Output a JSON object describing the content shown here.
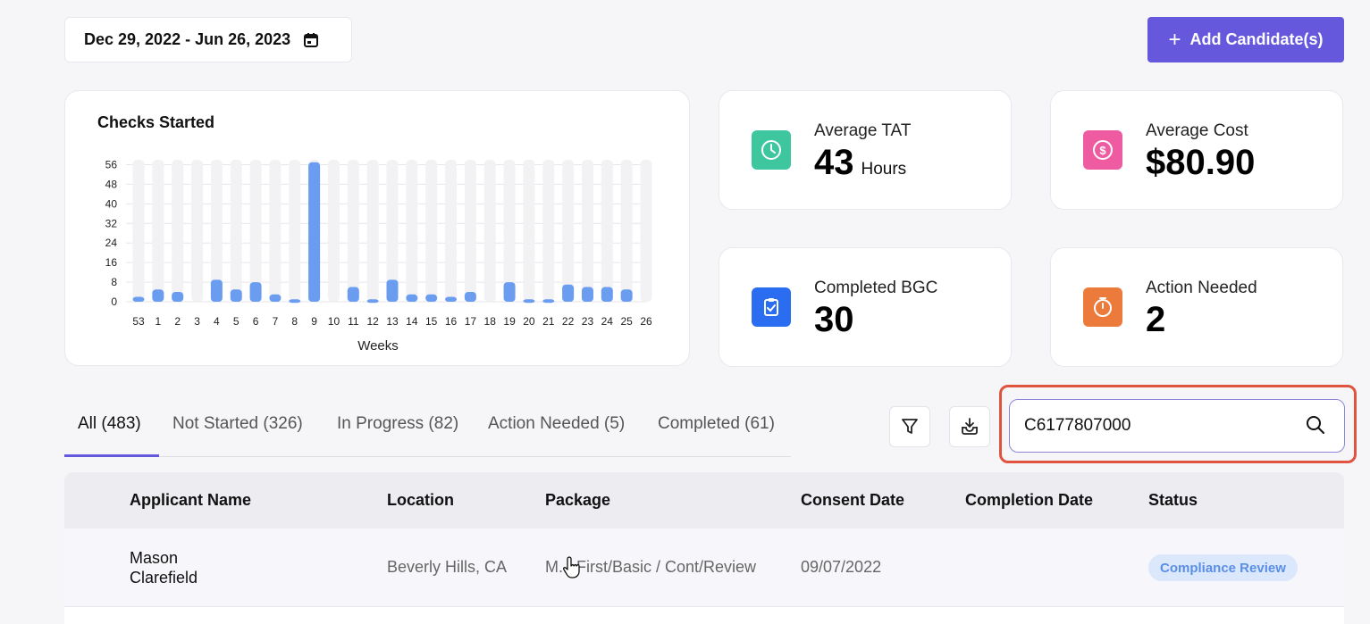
{
  "date_range": {
    "label": "Dec 29, 2022 - Jun 26, 2023",
    "icon": "calendar-icon"
  },
  "add_button": {
    "label": "Add Candidate(s)",
    "icon": "plus-icon"
  },
  "chart_data": {
    "type": "bar",
    "title": "Checks Started",
    "xlabel": "Weeks",
    "ylabel": "",
    "ylim": [
      0,
      58
    ],
    "yticks": [
      0,
      8,
      16,
      24,
      32,
      40,
      48,
      56
    ],
    "categories": [
      "53",
      "1",
      "2",
      "3",
      "4",
      "5",
      "6",
      "7",
      "8",
      "9",
      "10",
      "11",
      "12",
      "13",
      "14",
      "15",
      "16",
      "17",
      "18",
      "19",
      "20",
      "21",
      "22",
      "23",
      "24",
      "25",
      "26"
    ],
    "values": [
      2,
      5,
      4,
      0,
      9,
      5,
      8,
      3,
      1,
      57,
      0,
      6,
      1,
      9,
      3,
      3,
      2,
      4,
      0,
      8,
      1,
      1,
      7,
      6,
      6,
      5,
      0
    ],
    "grid": true,
    "colors": {
      "bar": "#6a9cf0",
      "track": "#f2f2f4"
    }
  },
  "stats": {
    "avg_tat": {
      "label": "Average TAT",
      "value": "43",
      "unit": "Hours",
      "icon": "clock-icon",
      "color": "#3ec79e"
    },
    "avg_cost": {
      "label": "Average Cost",
      "value": "$80.90",
      "icon": "dollar-icon",
      "color": "#ef5ba1"
    },
    "completed_bgc": {
      "label": "Completed BGC",
      "value": "30",
      "icon": "clipboard-check-icon",
      "color": "#2b6df0"
    },
    "action_needed": {
      "label": "Action Needed",
      "value": "2",
      "icon": "timer-icon",
      "color": "#ec7a3b"
    }
  },
  "tabs": [
    {
      "label": "All (483)",
      "active": true
    },
    {
      "label": "Not Started (326)"
    },
    {
      "label": "In Progress (82)"
    },
    {
      "label": "Action Needed (5)"
    },
    {
      "label": "Completed (61)"
    }
  ],
  "toolbar": {
    "filter_icon": "filter-icon",
    "download_icon": "download-icon"
  },
  "search": {
    "value": "C6177807000",
    "icon": "search-icon"
  },
  "table": {
    "headers": [
      "Applicant Name",
      "Location",
      "Package",
      "Consent Date",
      "Completion Date",
      "Status"
    ],
    "rows": [
      {
        "first_name": "Mason",
        "last_name": "Clarefield",
        "location": "Beverly Hills, CA",
        "package": "M... First/Basic / Cont/Review",
        "consent_date": "09/07/2022",
        "completion_date": "",
        "status": "Compliance Review"
      }
    ]
  },
  "colors": {
    "accent": "#6658dd",
    "highlight": "#e0533f"
  }
}
